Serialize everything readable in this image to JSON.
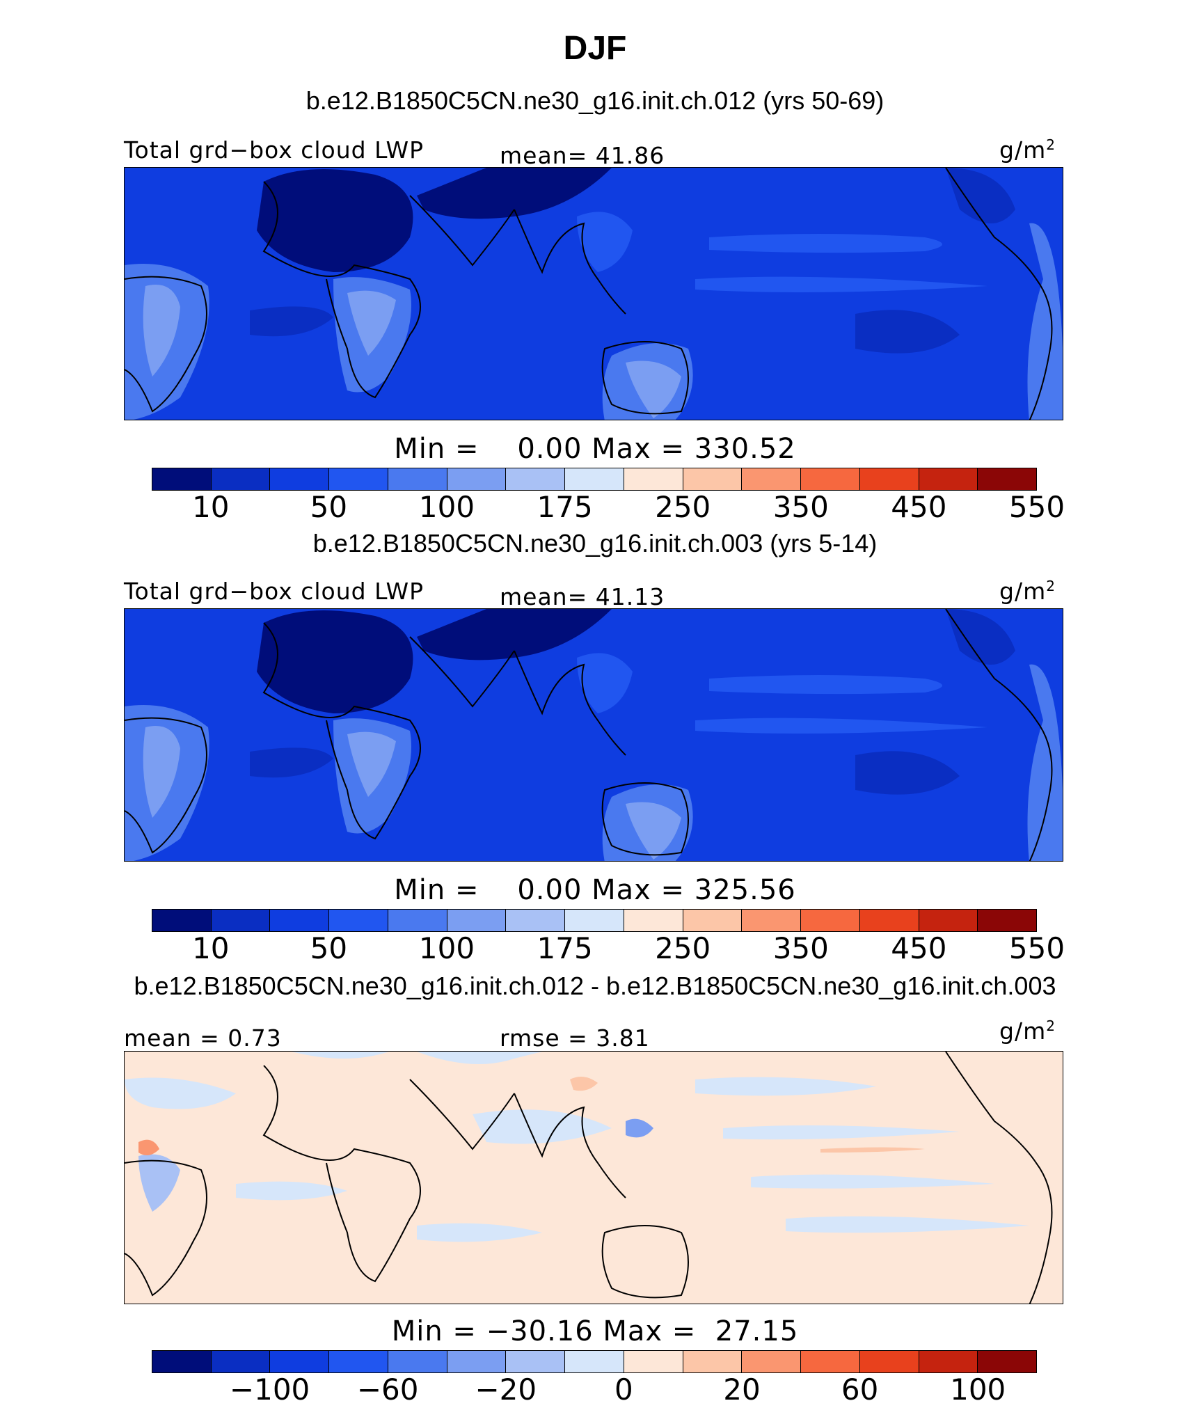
{
  "figure": {
    "title": "DJF",
    "units": "g/m²",
    "colors": [
      "#000d7a",
      "#0a2ec2",
      "#0f3de0",
      "#2156f0",
      "#4a79ef",
      "#7b9ef2",
      "#a9c1f5",
      "#d6e6fa",
      "#fde7d8",
      "#fcc6a8",
      "#fa9670",
      "#f6683f",
      "#e8411d",
      "#c5230f",
      "#8b0606"
    ]
  },
  "panels": [
    {
      "case_title": "b.e12.B1850C5CN.ne30_g16.init.ch.012 (yrs 50-69)",
      "left_label": "Total grd−box cloud LWP",
      "center_label": "mean=  41.86",
      "units": "g/m",
      "units_sup": "2",
      "minmax": "Min =    0.00 Max = 330.52",
      "ticks": [
        "10",
        "50",
        "100",
        "175",
        "250",
        "350",
        "450",
        "550"
      ]
    },
    {
      "case_title": "b.e12.B1850C5CN.ne30_g16.init.ch.003 (yrs 5-14)",
      "left_label": "Total grd−box cloud LWP",
      "center_label": "mean=  41.13",
      "units": "g/m",
      "units_sup": "2",
      "minmax": "Min =    0.00 Max = 325.56",
      "ticks": [
        "10",
        "50",
        "100",
        "175",
        "250",
        "350",
        "450",
        "550"
      ]
    },
    {
      "case_title": "b.e12.B1850C5CN.ne30_g16.init.ch.012 - b.e12.B1850C5CN.ne30_g16.init.ch.003",
      "left_label": "mean =   0.73",
      "center_label": "rmse =   3.81",
      "units": "g/m",
      "units_sup": "2",
      "minmax": "Min = −30.16 Max =  27.15",
      "ticks": [
        "−100",
        "−60",
        "−20",
        "0",
        "20",
        "60",
        "100"
      ]
    }
  ],
  "chart_data": [
    {
      "type": "heatmap",
      "title": "b.e12.B1850C5CN.ne30_g16.init.ch.012 (yrs 50-69)",
      "variable": "Total grd-box cloud LWP",
      "units": "g/m2",
      "mean": 41.86,
      "min": 0.0,
      "max": 330.52,
      "levels": [
        10,
        25,
        50,
        75,
        100,
        125,
        175,
        200,
        250,
        300,
        350,
        400,
        450,
        500,
        550
      ]
    },
    {
      "type": "heatmap",
      "title": "b.e12.B1850C5CN.ne30_g16.init.ch.003 (yrs 5-14)",
      "variable": "Total grd-box cloud LWP",
      "units": "g/m2",
      "mean": 41.13,
      "min": 0.0,
      "max": 325.56,
      "levels": [
        10,
        25,
        50,
        75,
        100,
        125,
        175,
        200,
        250,
        300,
        350,
        400,
        450,
        500,
        550
      ]
    },
    {
      "type": "heatmap",
      "title": "b.e12.B1850C5CN.ne30_g16.init.ch.012 - b.e12.B1850C5CN.ne30_g16.init.ch.003",
      "units": "g/m2",
      "mean": 0.73,
      "rmse": 3.81,
      "min": -30.16,
      "max": 27.15,
      "levels": [
        -100,
        -80,
        -60,
        -40,
        -20,
        -10,
        0,
        10,
        20,
        40,
        60,
        80,
        100
      ]
    }
  ]
}
